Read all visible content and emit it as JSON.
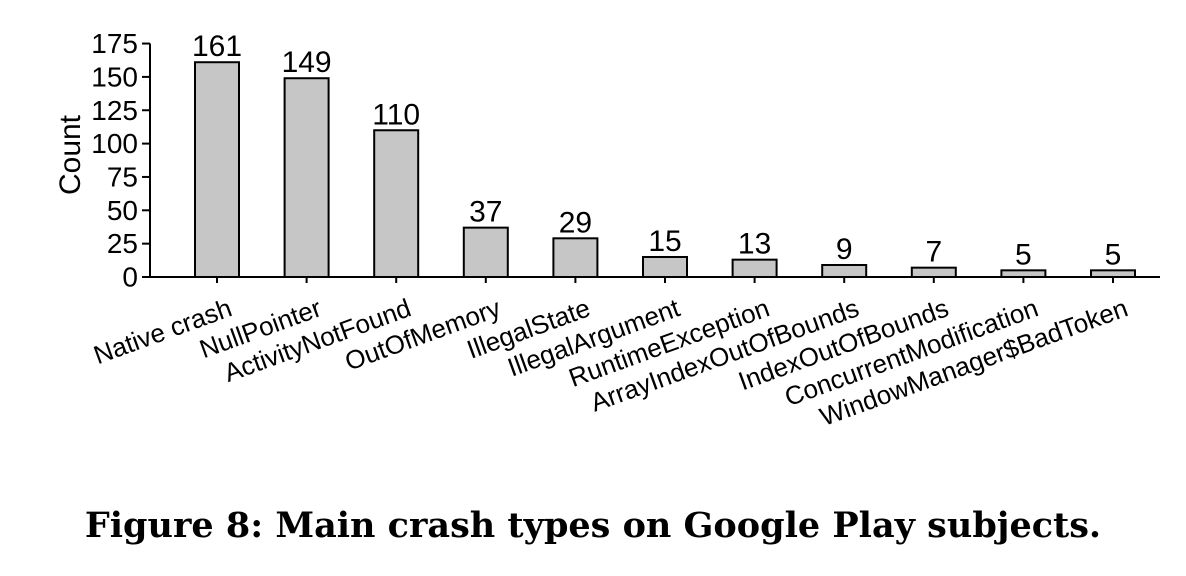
{
  "chart_data": {
    "type": "bar",
    "categories": [
      "Native crash",
      "NullPointer",
      "ActivityNotFound",
      "OutOfMemory",
      "IllegalState",
      "IllegalArgument",
      "RuntimeException",
      "ArrayIndexOutOfBounds",
      "IndexOutOfBounds",
      "ConcurrentModification",
      "WindowManager$BadToken"
    ],
    "values": [
      161,
      149,
      110,
      37,
      29,
      15,
      13,
      9,
      7,
      5,
      5
    ],
    "data_labels": [
      "161",
      "149",
      "110",
      "37",
      "29",
      "15",
      "13",
      "9",
      "7",
      "5",
      "5"
    ],
    "ylabel": "Count",
    "xlabel": "",
    "ylim": [
      0,
      175
    ],
    "yticks": [
      0,
      25,
      50,
      75,
      100,
      125,
      150,
      175
    ],
    "ytick_labels": [
      "0",
      "25",
      "50",
      "75",
      "100",
      "125",
      "150",
      "175"
    ],
    "grid": false,
    "colors": {
      "bar_fill": "#c6c6c6",
      "bar_stroke": "#000000",
      "axis": "#000000"
    }
  },
  "caption": "Figure 8: Main crash types on Google Play subjects."
}
